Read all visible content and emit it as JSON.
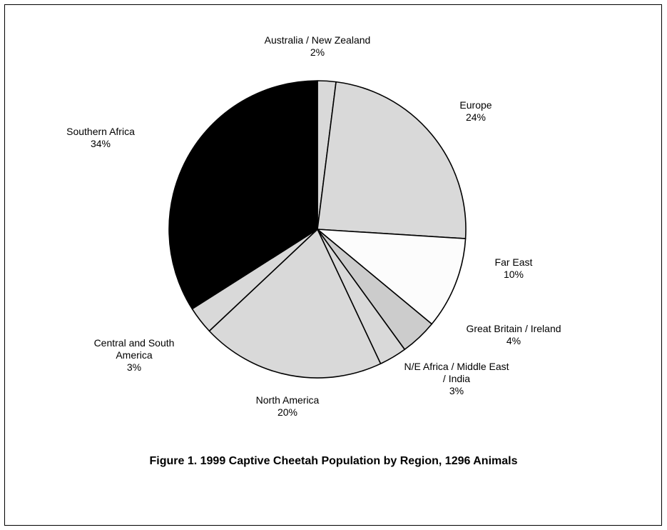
{
  "chart_data": {
    "type": "pie",
    "title": "Figure 1. 1999 Captive Cheetah Population by Region, 1296 Animals",
    "start_angle_deg": -90,
    "direction": "clockwise",
    "slices": [
      {
        "label": [
          "Australia / New Zealand"
        ],
        "pct_label": "2%",
        "value": 2,
        "color": "#d9d9d9"
      },
      {
        "label": [
          "Europe"
        ],
        "pct_label": "24%",
        "value": 24,
        "color": "#d9d9d9"
      },
      {
        "label": [
          "Far East"
        ],
        "pct_label": "10%",
        "value": 10,
        "color": "#fcfcfc"
      },
      {
        "label": [
          "Great Britain / Ireland"
        ],
        "pct_label": "4%",
        "value": 4,
        "color": "#cccccc"
      },
      {
        "label": [
          "N/E Africa / Middle East",
          "/ India"
        ],
        "pct_label": "3%",
        "value": 3,
        "color": "#d9d9d9"
      },
      {
        "label": [
          "North America"
        ],
        "pct_label": "20%",
        "value": 20,
        "color": "#d9d9d9"
      },
      {
        "label": [
          "Central and South",
          "America"
        ],
        "pct_label": "3%",
        "value": 3,
        "color": "#d9d9d9"
      },
      {
        "label": [
          "Southern Africa"
        ],
        "pct_label": "34%",
        "value": 34,
        "color": "#000000"
      }
    ]
  }
}
